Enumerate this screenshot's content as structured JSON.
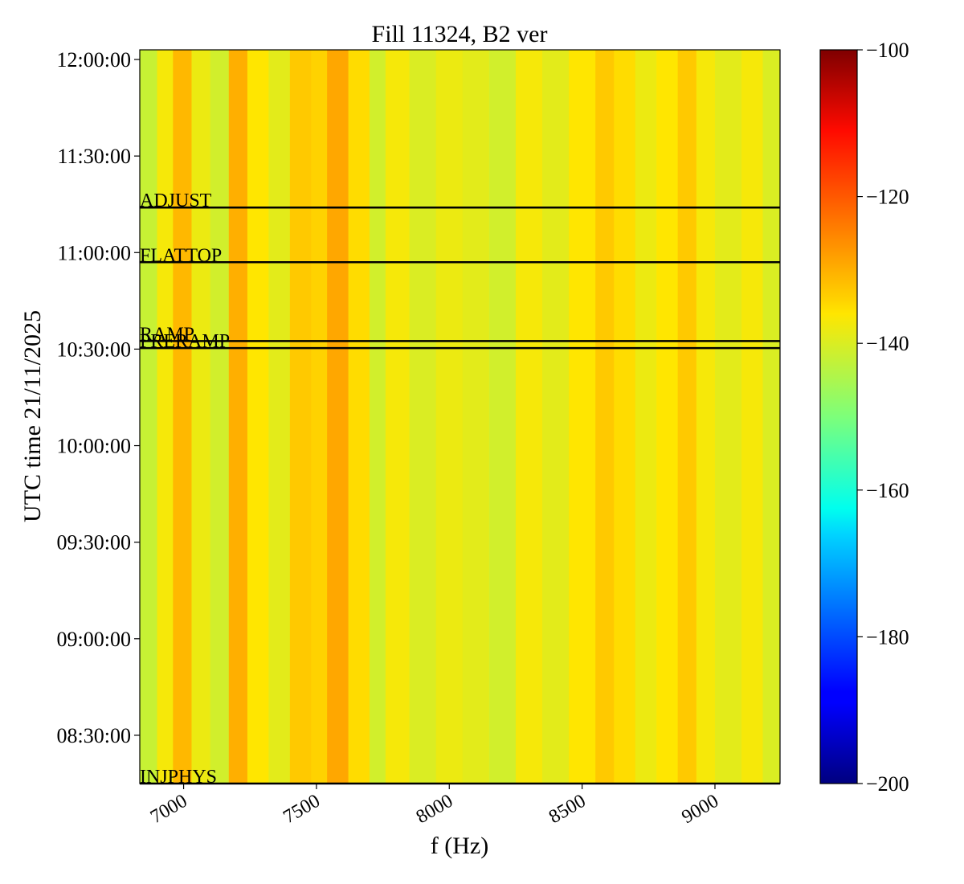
{
  "chart_data": {
    "type": "heatmap",
    "title": "Fill 11324, B2 ver",
    "xlabel": "f (Hz)",
    "ylabel": "UTC time 21/11/2025",
    "xlim": [
      6835,
      9245
    ],
    "x_ticks": [
      7000,
      7500,
      8000,
      8500,
      9000
    ],
    "x_tick_labels": [
      "7000",
      "7500",
      "8000",
      "8500",
      "9000"
    ],
    "ylim": [
      "08:15:00",
      "12:03:00"
    ],
    "y_ticks": [
      "08:30:00",
      "09:00:00",
      "09:30:00",
      "10:00:00",
      "10:30:00",
      "11:00:00",
      "11:30:00",
      "12:00:00"
    ],
    "y_tick_labels": [
      "08:30:00",
      "09:00:00",
      "09:30:00",
      "10:00:00",
      "10:30:00",
      "11:00:00",
      "11:30:00",
      "12:00:00"
    ],
    "colorbar": {
      "colormap": "jet",
      "vmin": -200,
      "vmax": -100,
      "ticks": [
        -200,
        -180,
        -160,
        -140,
        -120,
        -100
      ],
      "tick_labels": [
        "−200",
        "−180",
        "−160",
        "−140",
        "−120",
        "−100"
      ]
    },
    "value_profile_note_free": true,
    "value_bands": [
      {
        "f": [
          6835,
          6900
        ],
        "value": -142
      },
      {
        "f": [
          6900,
          6960
        ],
        "value": -137
      },
      {
        "f": [
          6960,
          7030
        ],
        "value": -131
      },
      {
        "f": [
          7030,
          7100
        ],
        "value": -138
      },
      {
        "f": [
          7100,
          7170
        ],
        "value": -141
      },
      {
        "f": [
          7170,
          7240
        ],
        "value": -130
      },
      {
        "f": [
          7240,
          7320
        ],
        "value": -136
      },
      {
        "f": [
          7320,
          7400
        ],
        "value": -139
      },
      {
        "f": [
          7400,
          7480
        ],
        "value": -133
      },
      {
        "f": [
          7480,
          7540
        ],
        "value": -134
      },
      {
        "f": [
          7540,
          7620
        ],
        "value": -129
      },
      {
        "f": [
          7620,
          7700
        ],
        "value": -135
      },
      {
        "f": [
          7700,
          7760
        ],
        "value": -141
      },
      {
        "f": [
          7760,
          7850
        ],
        "value": -137
      },
      {
        "f": [
          7850,
          7950
        ],
        "value": -140
      },
      {
        "f": [
          7950,
          8050
        ],
        "value": -138
      },
      {
        "f": [
          8050,
          8150
        ],
        "value": -139
      },
      {
        "f": [
          8150,
          8250
        ],
        "value": -141
      },
      {
        "f": [
          8250,
          8350
        ],
        "value": -137
      },
      {
        "f": [
          8350,
          8450
        ],
        "value": -139
      },
      {
        "f": [
          8450,
          8550
        ],
        "value": -136
      },
      {
        "f": [
          8550,
          8620
        ],
        "value": -133
      },
      {
        "f": [
          8620,
          8700
        ],
        "value": -135
      },
      {
        "f": [
          8700,
          8780
        ],
        "value": -138
      },
      {
        "f": [
          8780,
          8860
        ],
        "value": -136
      },
      {
        "f": [
          8860,
          8930
        ],
        "value": -133
      },
      {
        "f": [
          8930,
          9000
        ],
        "value": -137
      },
      {
        "f": [
          9000,
          9100
        ],
        "value": -139
      },
      {
        "f": [
          9100,
          9180
        ],
        "value": -137
      },
      {
        "f": [
          9180,
          9245
        ],
        "value": -140
      }
    ],
    "events": [
      {
        "label": "ADJUST",
        "time": "11:14:00"
      },
      {
        "label": "FLATTOP",
        "time": "10:57:00"
      },
      {
        "label": "RAMP",
        "time": "10:32:30"
      },
      {
        "label": "PRERAMP",
        "time": "10:30:20"
      },
      {
        "label": "INJPHYS",
        "time": "08:15:00"
      }
    ]
  }
}
